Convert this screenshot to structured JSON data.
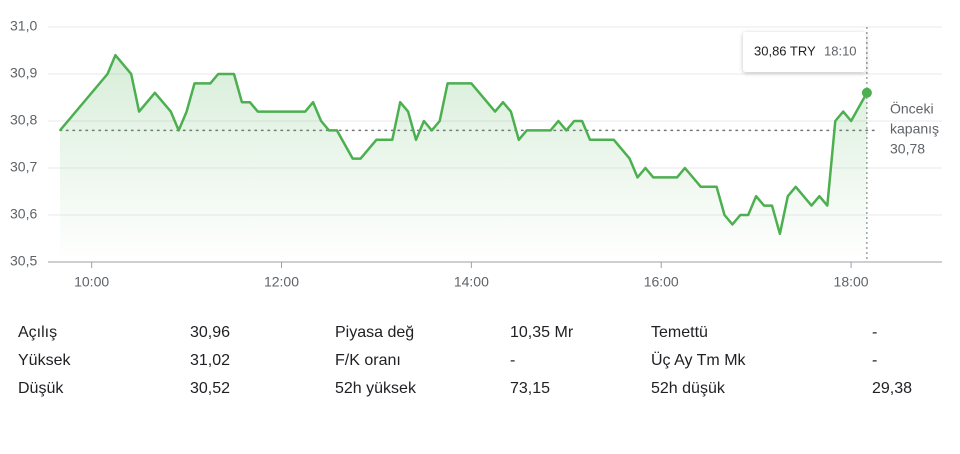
{
  "chart_data": {
    "type": "line",
    "x": [
      "09:40",
      "10:10",
      "10:15",
      "10:25",
      "10:30",
      "10:40",
      "10:50",
      "10:55",
      "11:00",
      "11:05",
      "11:15",
      "11:20",
      "11:30",
      "11:35",
      "11:40",
      "11:45",
      "12:15",
      "12:20",
      "12:25",
      "12:30",
      "12:35",
      "12:45",
      "12:50",
      "13:00",
      "13:10",
      "13:15",
      "13:20",
      "13:25",
      "13:30",
      "13:35",
      "13:40",
      "13:45",
      "14:00",
      "14:15",
      "14:20",
      "14:25",
      "14:30",
      "14:35",
      "14:50",
      "14:55",
      "15:00",
      "15:05",
      "15:10",
      "15:15",
      "15:30",
      "15:40",
      "15:45",
      "15:50",
      "15:55",
      "16:10",
      "16:15",
      "16:25",
      "16:35",
      "16:40",
      "16:45",
      "16:50",
      "16:55",
      "17:00",
      "17:05",
      "17:10",
      "17:15",
      "17:20",
      "17:25",
      "17:35",
      "17:40",
      "17:45",
      "17:50",
      "17:55",
      "18:00",
      "18:10"
    ],
    "values": [
      30.78,
      30.9,
      30.94,
      30.9,
      30.82,
      30.86,
      30.82,
      30.78,
      30.82,
      30.88,
      30.88,
      30.9,
      30.9,
      30.84,
      30.84,
      30.82,
      30.82,
      30.84,
      30.8,
      30.78,
      30.78,
      30.72,
      30.72,
      30.76,
      30.76,
      30.84,
      30.82,
      30.76,
      30.8,
      30.78,
      30.8,
      30.88,
      30.88,
      30.82,
      30.84,
      30.82,
      30.76,
      30.78,
      30.78,
      30.8,
      30.78,
      30.8,
      30.8,
      30.76,
      30.76,
      30.72,
      30.68,
      30.7,
      30.68,
      30.68,
      30.7,
      30.66,
      30.66,
      30.6,
      30.58,
      30.6,
      30.6,
      30.64,
      30.62,
      30.62,
      30.56,
      30.64,
      30.66,
      30.62,
      30.64,
      30.62,
      30.8,
      30.82,
      30.8,
      30.86
    ],
    "color": "#4caf50",
    "xlim": [
      "09:40",
      "19:00"
    ],
    "xticks": [
      "10:00",
      "12:00",
      "14:00",
      "16:00",
      "18:00"
    ],
    "ylim": [
      30.5,
      31.0
    ],
    "yticks": [
      {
        "value": 30.5,
        "label": "30,5"
      },
      {
        "value": 30.6,
        "label": "30,6"
      },
      {
        "value": 30.7,
        "label": "30,7"
      },
      {
        "value": 30.8,
        "label": "30,8"
      },
      {
        "value": 30.9,
        "label": "30,9"
      },
      {
        "value": 31.0,
        "label": "31,0"
      }
    ],
    "grid": true,
    "previous_close": {
      "label": [
        "Önceki",
        "kapanış"
      ],
      "value": 30.78,
      "value_label": "30,78"
    },
    "tooltip": {
      "value": 30.86,
      "label": "30,86 TRY",
      "time": "18:10"
    }
  },
  "stats": [
    {
      "label": "Açılış",
      "value": "30,96"
    },
    {
      "label": "Yüksek",
      "value": "31,02"
    },
    {
      "label": "Düşük",
      "value": "30,52"
    },
    {
      "label": "Piyasa değ",
      "value": "10,35 Mr"
    },
    {
      "label": "F/K oranı",
      "value": "-"
    },
    {
      "label": "52h yüksek",
      "value": "73,15"
    },
    {
      "label": "Temettü",
      "value": "-"
    },
    {
      "label": "Üç Ay Tm Mk",
      "value": "-"
    },
    {
      "label": "52h düşük",
      "value": "29,38"
    }
  ]
}
